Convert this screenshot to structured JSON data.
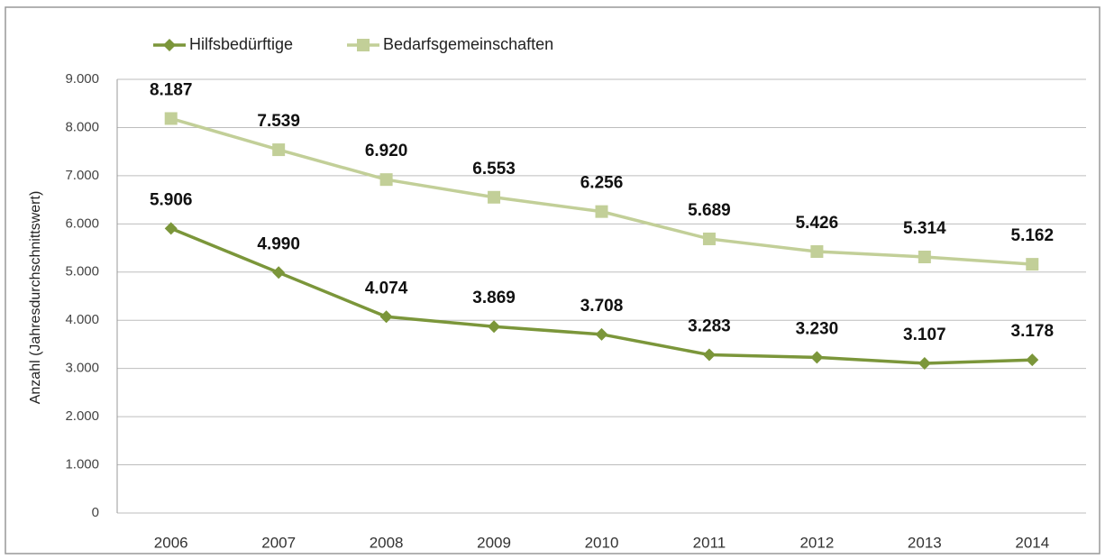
{
  "chart_data": {
    "type": "line",
    "ylabel": "Anzahl (Jahresdurchschnittswert)",
    "categories": [
      "2006",
      "2007",
      "2008",
      "2009",
      "2010",
      "2011",
      "2012",
      "2013",
      "2014"
    ],
    "series": [
      {
        "name": "Hilfsbedürftige",
        "color": "#7b963a",
        "marker": "diamond",
        "values": [
          5906,
          4990,
          4074,
          3869,
          3708,
          3283,
          3230,
          3107,
          3178
        ],
        "value_labels": [
          "5.906",
          "4.990",
          "4.074",
          "3.869",
          "3.708",
          "3.283",
          "3.230",
          "3.107",
          "3.178"
        ]
      },
      {
        "name": "Bedarfsgemeinschaften",
        "color": "#c2cf98",
        "marker": "square",
        "values": [
          8187,
          7539,
          6920,
          6553,
          6256,
          5689,
          5426,
          5314,
          5162
        ],
        "value_labels": [
          "8.187",
          "7.539",
          "6.920",
          "6.553",
          "6.256",
          "5.689",
          "5.426",
          "5.314",
          "5.162"
        ]
      }
    ],
    "ylim": [
      0,
      9000
    ],
    "yticks": [
      0,
      {
        "value": 1000,
        "label": "1.000"
      },
      {
        "value": 2000,
        "label": "2.000"
      },
      {
        "value": 3000,
        "label": "3.000"
      },
      {
        "value": 4000,
        "label": "4.000"
      },
      {
        "value": 5000,
        "label": "5.000"
      },
      {
        "value": 6000,
        "label": "6.000"
      },
      {
        "value": 7000,
        "label": "7.000"
      },
      {
        "value": 8000,
        "label": "8.000"
      },
      {
        "value": 9000,
        "label": "9.000"
      }
    ],
    "grid": true,
    "legend": "top-left"
  }
}
